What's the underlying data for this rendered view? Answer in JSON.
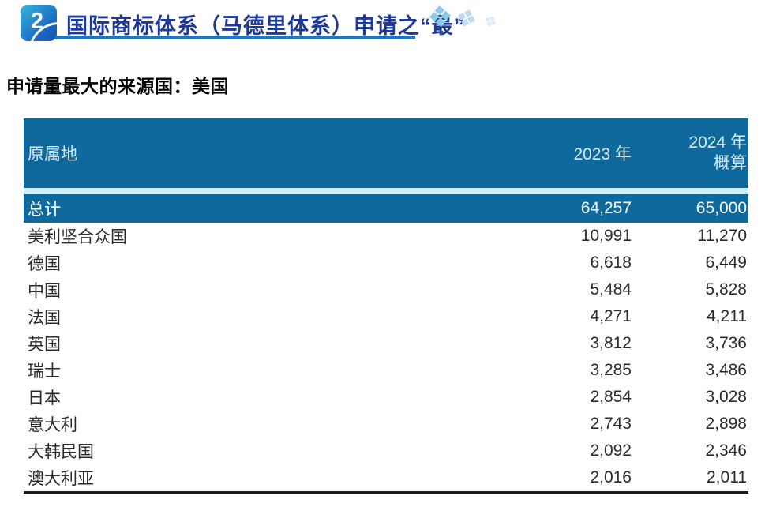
{
  "page": {
    "section_number": "2",
    "section_title": "国际商标体系（马德里体系）申请之“最”",
    "gem_glyph": "❖",
    "subtitle": "申请量最大的来源国：美国"
  },
  "table": {
    "col_origin": "原属地",
    "col_2023": "2023 年",
    "col_2024_line1": "2024 年",
    "col_2024_line2": "概算",
    "total": {
      "name": "总计",
      "v2023": "64,257",
      "v2024": "65,000"
    },
    "rows": [
      {
        "name": "美利坚合众国",
        "v2023": "10,991",
        "v2024": "11,270"
      },
      {
        "name": "德国",
        "v2023": "6,618",
        "v2024": "6,449"
      },
      {
        "name": "中国",
        "v2023": "5,484",
        "v2024": "5,828"
      },
      {
        "name": "法国",
        "v2023": "4,271",
        "v2024": "4,211"
      },
      {
        "name": "英国",
        "v2023": "3,812",
        "v2024": "3,736"
      },
      {
        "name": "瑞士",
        "v2023": "3,285",
        "v2024": "3,486"
      },
      {
        "name": "日本",
        "v2023": "2,854",
        "v2024": "3,028"
      },
      {
        "name": "意大利",
        "v2023": "2,743",
        "v2024": "2,898"
      },
      {
        "name": "大韩民国",
        "v2023": "2,092",
        "v2024": "2,346"
      },
      {
        "name": "澳大利亚",
        "v2023": "2,016",
        "v2024": "2,011"
      }
    ]
  },
  "colors": {
    "table_blue": "#10699c",
    "separator_cyan": "#cdeef6",
    "title_navy": "#1e3a96",
    "underline_blue": "#0e7cd4",
    "badge_gradient_start": "#3ab5da",
    "badge_gradient_end": "#1553ab",
    "header_text": "#d5e9f3",
    "body_text": "#2b2b2b"
  },
  "chart_data": {
    "type": "table",
    "title": "申请量最大的来源国：美国",
    "columns": [
      "原属地",
      "2023 年",
      "2024 年 概算"
    ],
    "rows": [
      [
        "总计",
        64257,
        65000
      ],
      [
        "美利坚合众国",
        10991,
        11270
      ],
      [
        "德国",
        6618,
        6449
      ],
      [
        "中国",
        5484,
        5828
      ],
      [
        "法国",
        4271,
        4211
      ],
      [
        "英国",
        3812,
        3736
      ],
      [
        "瑞士",
        3285,
        3486
      ],
      [
        "日本",
        2854,
        3028
      ],
      [
        "意大利",
        2743,
        2898
      ],
      [
        "大韩民国",
        2092,
        2346
      ],
      [
        "澳大利亚",
        2016,
        2011
      ]
    ]
  }
}
